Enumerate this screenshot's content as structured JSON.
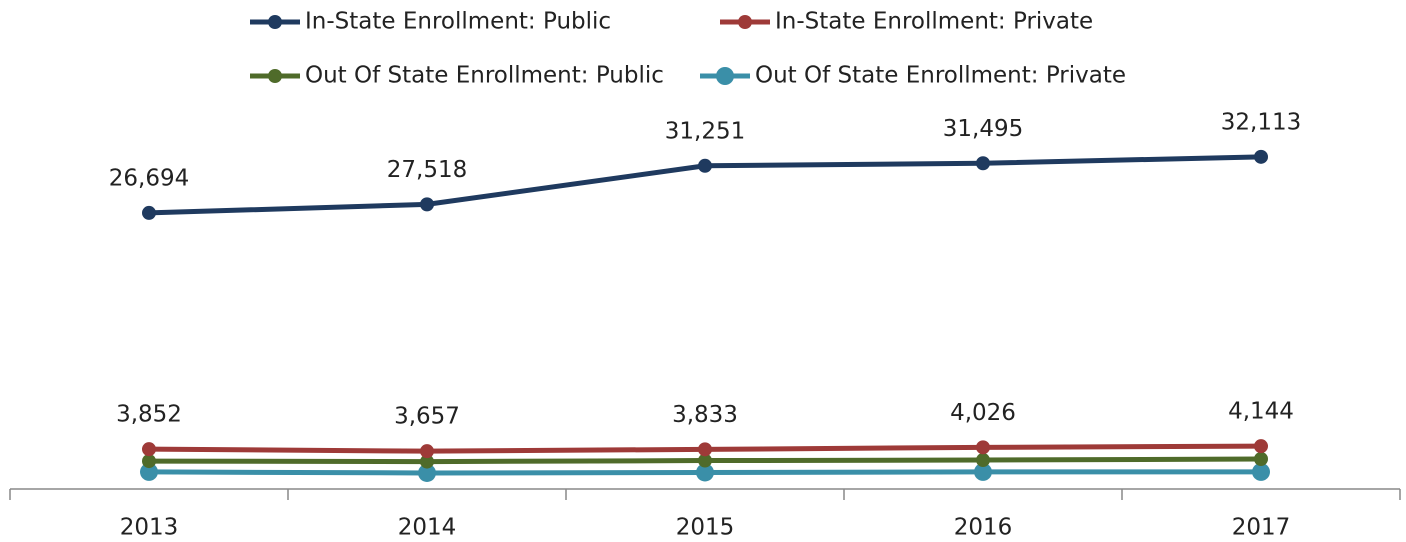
{
  "chart_data": {
    "type": "line",
    "categories": [
      "2013",
      "2014",
      "2015",
      "2016",
      "2017"
    ],
    "ylim": [
      0,
      35000
    ],
    "legend": "top",
    "series": [
      {
        "name": "In-State Enrollment: Public",
        "color": "#1f3a5f",
        "values": [
          26694,
          27518,
          31251,
          31495,
          32113
        ],
        "value_labels": [
          "26,694",
          "27,518",
          "31,251",
          "31,495",
          "32,113"
        ]
      },
      {
        "name": "In-State Enrollment: Private",
        "color": "#9e3a38",
        "values": [
          3852,
          3657,
          3833,
          4026,
          4144
        ],
        "value_labels": [
          "3,852",
          "3,657",
          "3,833",
          "4,026",
          "4,144"
        ]
      },
      {
        "name": "Out Of State Enrollment: Public",
        "color": "#4f6b2a",
        "values": [
          2700,
          2650,
          2750,
          2800,
          2900
        ]
      },
      {
        "name": "Out Of State Enrollment: Private",
        "color": "#3a8fa8",
        "values": [
          1650,
          1550,
          1600,
          1650,
          1650
        ]
      }
    ]
  }
}
